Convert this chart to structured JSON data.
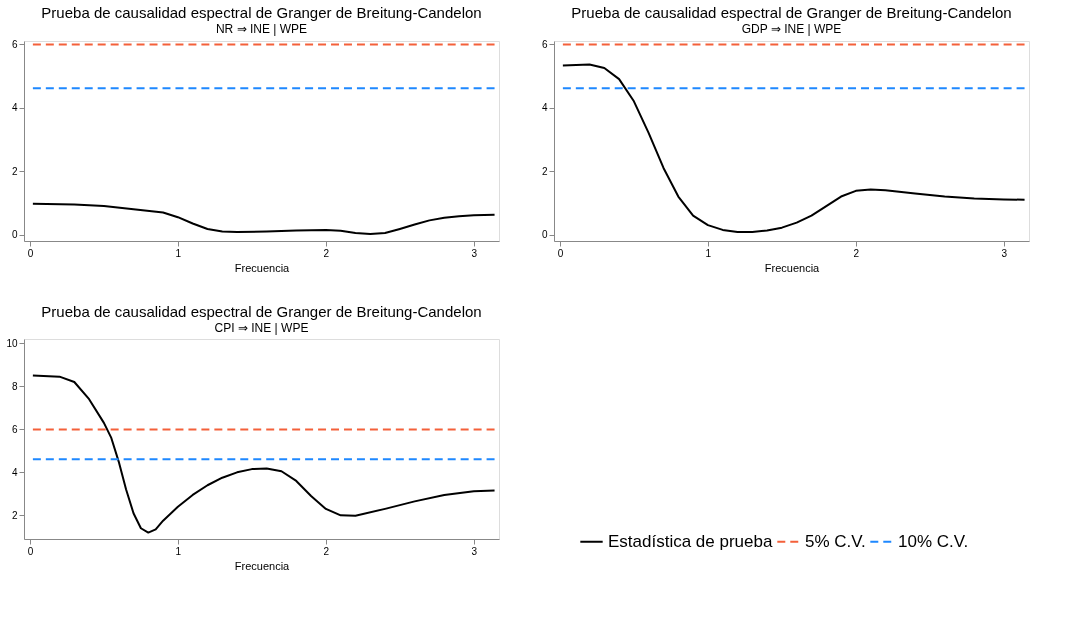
{
  "chart_data": [
    {
      "type": "line",
      "title": "Prueba de causalidad espectral de Granger de Breitung-Candelon",
      "subtitle": "NR ⇒ INE |  WPE",
      "xlabel": "Frecuencia",
      "xlim": [
        -0.04,
        3.17
      ],
      "xticks": [
        0,
        1,
        2,
        3
      ],
      "ylim": [
        -0.2,
        6.1
      ],
      "yticks": [
        0,
        2,
        4,
        6
      ],
      "grid": false,
      "series": [
        {
          "color": "#000000",
          "line_style": "solid",
          "x": [
            0.02,
            0.3,
            0.5,
            0.7,
            0.9,
            1.0,
            1.1,
            1.2,
            1.3,
            1.4,
            1.6,
            1.8,
            2.0,
            2.1,
            2.2,
            2.3,
            2.4,
            2.5,
            2.6,
            2.7,
            2.8,
            2.9,
            3.0,
            3.14
          ],
          "values": [
            0.97,
            0.95,
            0.9,
            0.8,
            0.7,
            0.55,
            0.35,
            0.18,
            0.1,
            0.08,
            0.1,
            0.13,
            0.15,
            0.12,
            0.05,
            0.02,
            0.05,
            0.18,
            0.32,
            0.45,
            0.53,
            0.58,
            0.61,
            0.63
          ]
        },
        {
          "color": "#f4603a",
          "line_style": "dashed",
          "x": [
            0.02,
            3.14
          ],
          "values": [
            5.99,
            5.99
          ]
        },
        {
          "color": "#1e88ff",
          "line_style": "dashed",
          "x": [
            0.02,
            3.14
          ],
          "values": [
            4.61,
            4.61
          ]
        }
      ]
    },
    {
      "type": "line",
      "title": "Prueba de causalidad espectral de Granger de Breitung-Candelon",
      "subtitle": "GDP ⇒ INE | WPE",
      "xlabel": "Frecuencia",
      "xlim": [
        -0.04,
        3.17
      ],
      "xticks": [
        0,
        1,
        2,
        3
      ],
      "ylim": [
        -0.2,
        6.1
      ],
      "yticks": [
        0,
        2,
        4,
        6
      ],
      "grid": false,
      "series": [
        {
          "color": "#000000",
          "line_style": "solid",
          "x": [
            0.02,
            0.2,
            0.3,
            0.4,
            0.5,
            0.6,
            0.7,
            0.8,
            0.9,
            1.0,
            1.1,
            1.2,
            1.3,
            1.4,
            1.5,
            1.6,
            1.7,
            1.8,
            1.9,
            2.0,
            2.1,
            2.2,
            2.4,
            2.6,
            2.8,
            3.0,
            3.14
          ],
          "values": [
            5.33,
            5.36,
            5.25,
            4.9,
            4.2,
            3.2,
            2.1,
            1.2,
            0.6,
            0.3,
            0.15,
            0.08,
            0.08,
            0.13,
            0.22,
            0.38,
            0.6,
            0.9,
            1.2,
            1.38,
            1.42,
            1.4,
            1.3,
            1.2,
            1.14,
            1.11,
            1.1
          ]
        },
        {
          "color": "#f4603a",
          "line_style": "dashed",
          "x": [
            0.02,
            3.14
          ],
          "values": [
            5.99,
            5.99
          ]
        },
        {
          "color": "#1e88ff",
          "line_style": "dashed",
          "x": [
            0.02,
            3.14
          ],
          "values": [
            4.61,
            4.61
          ]
        }
      ]
    },
    {
      "type": "line",
      "title": "Prueba de causalidad espectral de Granger de Breitung-Candelon",
      "subtitle": "CPI ⇒ INE | WPE",
      "xlabel": "Frecuencia",
      "xlim": [
        -0.04,
        3.17
      ],
      "xticks": [
        0,
        1,
        2,
        3
      ],
      "ylim": [
        0.9,
        10.2
      ],
      "yticks": [
        2,
        4,
        6,
        8,
        10
      ],
      "grid": false,
      "legend": "bottom right",
      "series": [
        {
          "name": "Estadística de prueba",
          "color": "#000000",
          "line_style": "solid",
          "x": [
            0.02,
            0.2,
            0.3,
            0.4,
            0.5,
            0.55,
            0.6,
            0.65,
            0.7,
            0.75,
            0.8,
            0.85,
            0.9,
            1.0,
            1.1,
            1.2,
            1.3,
            1.4,
            1.5,
            1.6,
            1.7,
            1.8,
            1.9,
            2.0,
            2.1,
            2.2,
            2.4,
            2.6,
            2.8,
            3.0,
            3.14
          ],
          "values": [
            8.5,
            8.45,
            8.2,
            7.4,
            6.3,
            5.6,
            4.5,
            3.2,
            2.1,
            1.4,
            1.2,
            1.35,
            1.75,
            2.4,
            2.95,
            3.4,
            3.75,
            4.0,
            4.15,
            4.18,
            4.05,
            3.6,
            2.9,
            2.3,
            2.0,
            1.98,
            2.3,
            2.65,
            2.95,
            3.12,
            3.15
          ]
        },
        {
          "name": "5% C.V.",
          "color": "#f4603a",
          "line_style": "dashed",
          "x": [
            0.02,
            3.14
          ],
          "values": [
            5.99,
            5.99
          ]
        },
        {
          "name": "10% C.V.",
          "color": "#1e88ff",
          "line_style": "dashed",
          "x": [
            0.02,
            3.14
          ],
          "values": [
            4.61,
            4.61
          ]
        }
      ]
    }
  ]
}
